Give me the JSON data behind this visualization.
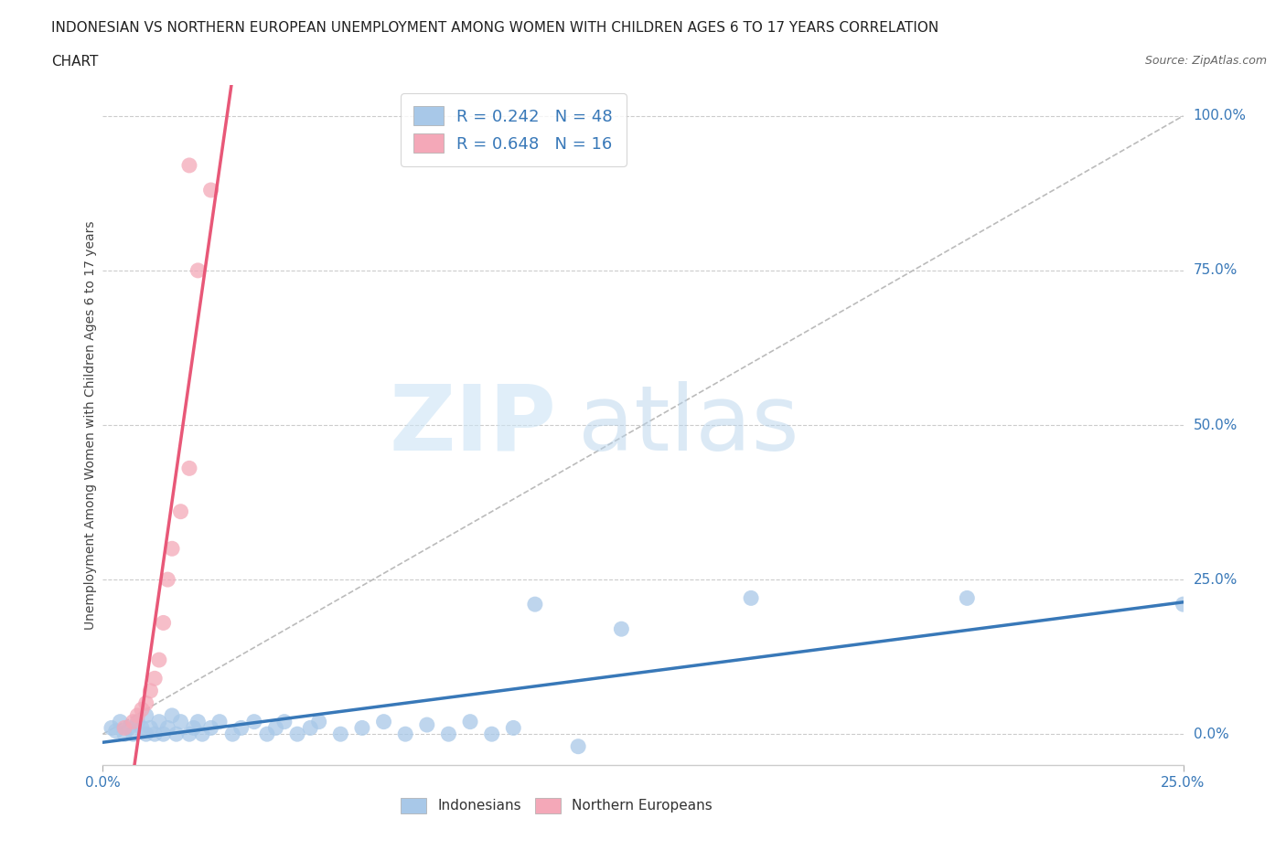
{
  "title_line1": "INDONESIAN VS NORTHERN EUROPEAN UNEMPLOYMENT AMONG WOMEN WITH CHILDREN AGES 6 TO 17 YEARS CORRELATION",
  "title_line2": "CHART",
  "source": "Source: ZipAtlas.com",
  "ylabel": "Unemployment Among Women with Children Ages 6 to 17 years",
  "xlim": [
    0.0,
    0.25
  ],
  "ylim": [
    -0.05,
    1.05
  ],
  "yticks": [
    0.0,
    0.25,
    0.5,
    0.75,
    1.0
  ],
  "ytick_labels": [
    "0.0%",
    "25.0%",
    "50.0%",
    "75.0%",
    "100.0%"
  ],
  "xticks": [
    0.0,
    0.25
  ],
  "xtick_labels": [
    "0.0%",
    "25.0%"
  ],
  "indonesian_color": "#a8c8e8",
  "northern_european_color": "#f4a8b8",
  "indonesian_line_color": "#3878b8",
  "northern_european_line_color": "#e85878",
  "R_indonesian": 0.242,
  "N_indonesian": 48,
  "R_northern": 0.648,
  "N_northern": 16,
  "background_color": "#ffffff",
  "indonesian_scatter": [
    [
      0.002,
      0.01
    ],
    [
      0.003,
      0.005
    ],
    [
      0.004,
      0.02
    ],
    [
      0.005,
      0.0
    ],
    [
      0.006,
      0.01
    ],
    [
      0.007,
      0.0
    ],
    [
      0.008,
      0.02
    ],
    [
      0.009,
      0.01
    ],
    [
      0.01,
      0.0
    ],
    [
      0.01,
      0.03
    ],
    [
      0.011,
      0.01
    ],
    [
      0.012,
      0.0
    ],
    [
      0.013,
      0.02
    ],
    [
      0.014,
      0.0
    ],
    [
      0.015,
      0.01
    ],
    [
      0.016,
      0.03
    ],
    [
      0.017,
      0.0
    ],
    [
      0.018,
      0.02
    ],
    [
      0.02,
      0.0
    ],
    [
      0.021,
      0.01
    ],
    [
      0.022,
      0.02
    ],
    [
      0.023,
      0.0
    ],
    [
      0.025,
      0.01
    ],
    [
      0.027,
      0.02
    ],
    [
      0.03,
      0.0
    ],
    [
      0.032,
      0.01
    ],
    [
      0.035,
      0.02
    ],
    [
      0.038,
      0.0
    ],
    [
      0.04,
      0.01
    ],
    [
      0.042,
      0.02
    ],
    [
      0.045,
      0.0
    ],
    [
      0.048,
      0.01
    ],
    [
      0.05,
      0.02
    ],
    [
      0.055,
      0.0
    ],
    [
      0.06,
      0.01
    ],
    [
      0.065,
      0.02
    ],
    [
      0.07,
      0.0
    ],
    [
      0.075,
      0.015
    ],
    [
      0.08,
      0.0
    ],
    [
      0.085,
      0.02
    ],
    [
      0.09,
      0.0
    ],
    [
      0.095,
      0.01
    ],
    [
      0.1,
      0.21
    ],
    [
      0.11,
      -0.02
    ],
    [
      0.12,
      0.17
    ],
    [
      0.15,
      0.22
    ],
    [
      0.2,
      0.22
    ],
    [
      0.25,
      0.21
    ]
  ],
  "northern_scatter": [
    [
      0.005,
      0.01
    ],
    [
      0.007,
      0.02
    ],
    [
      0.008,
      0.03
    ],
    [
      0.009,
      0.04
    ],
    [
      0.01,
      0.05
    ],
    [
      0.011,
      0.07
    ],
    [
      0.012,
      0.09
    ],
    [
      0.013,
      0.12
    ],
    [
      0.014,
      0.18
    ],
    [
      0.015,
      0.25
    ],
    [
      0.016,
      0.3
    ],
    [
      0.018,
      0.36
    ],
    [
      0.02,
      0.43
    ],
    [
      0.022,
      0.75
    ],
    [
      0.025,
      0.88
    ],
    [
      0.02,
      0.92
    ]
  ]
}
